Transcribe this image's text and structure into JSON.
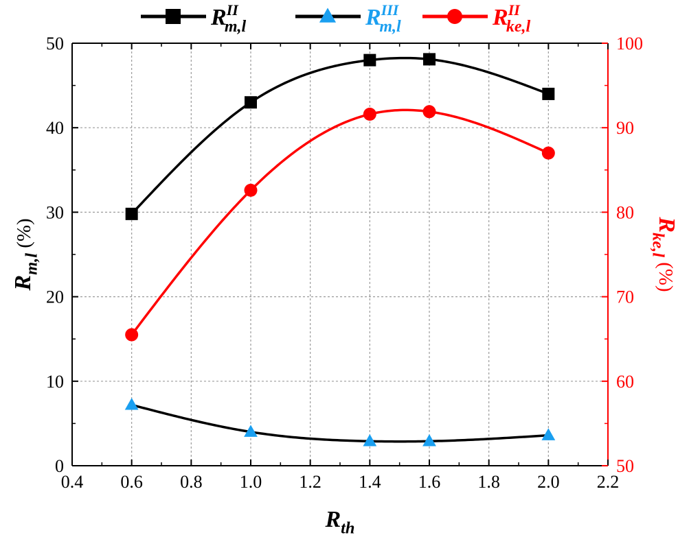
{
  "chart_data": {
    "type": "line",
    "title": "",
    "x": [
      0.6,
      1.0,
      1.4,
      1.6,
      2.0
    ],
    "xlim": [
      0.4,
      2.2
    ],
    "xticks": [
      "0.4",
      "0.6",
      "0.8",
      "1.0",
      "1.2",
      "1.4",
      "1.6",
      "1.8",
      "2.0",
      "2.2"
    ],
    "ylim_left": [
      0,
      50
    ],
    "yticks_left": [
      "0",
      "10",
      "20",
      "30",
      "40",
      "50"
    ],
    "ylim_right": [
      50,
      100
    ],
    "yticks_right": [
      "50",
      "60",
      "70",
      "80",
      "90",
      "100"
    ],
    "grid": true,
    "xlabel": {
      "base": "R",
      "sub": "th"
    },
    "ylabel_left": {
      "base": "R",
      "sub": "m,l",
      "unit": "(%)"
    },
    "ylabel_right": {
      "base": "R",
      "sub": "ke,l",
      "unit": "(%)"
    },
    "series": [
      {
        "name": "R^II_m,l",
        "legend_base": "R",
        "legend_sup": "II",
        "legend_sub": "m,l",
        "axis": "left",
        "marker": "square",
        "marker_color": "#000000",
        "line_color": "#000000",
        "values": [
          29.8,
          43.0,
          48.0,
          48.1,
          44.0
        ]
      },
      {
        "name": "R^III_m,l",
        "legend_base": "R",
        "legend_sup": "III",
        "legend_sub": "m,l",
        "axis": "left",
        "marker": "triangle",
        "marker_color": "#1a9ff0",
        "line_color": "#000000",
        "values": [
          7.2,
          4.0,
          2.9,
          2.9,
          3.6
        ]
      },
      {
        "name": "R^II_ke,l",
        "legend_base": "R",
        "legend_sup": "II",
        "legend_sub": "ke,l",
        "axis": "right",
        "marker": "circle",
        "marker_color": "#ff0000",
        "line_color": "#ff0000",
        "values": [
          65.5,
          82.6,
          91.6,
          91.9,
          87.0
        ]
      }
    ],
    "legend_position": "top-center"
  }
}
